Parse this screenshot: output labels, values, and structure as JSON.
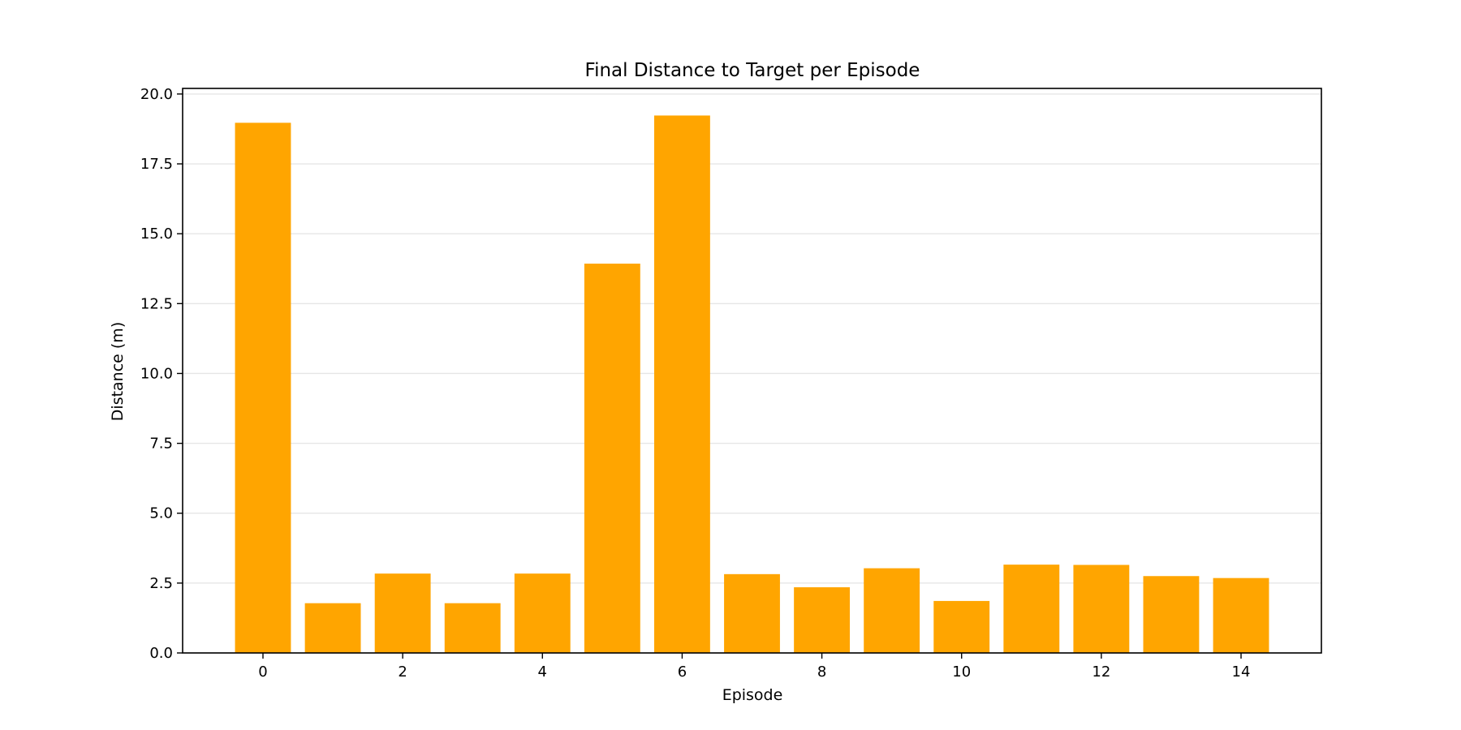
{
  "chart_data": {
    "type": "bar",
    "title": "Final Distance to Target per Episode",
    "xlabel": "Episode",
    "ylabel": "Distance (m)",
    "categories": [
      0,
      1,
      2,
      3,
      4,
      5,
      6,
      7,
      8,
      9,
      10,
      11,
      12,
      13,
      14
    ],
    "values": [
      18.97,
      1.78,
      2.84,
      1.78,
      2.84,
      13.93,
      19.23,
      2.82,
      2.35,
      3.03,
      1.86,
      3.16,
      3.15,
      2.75,
      2.68
    ],
    "xlim": [
      -1.15,
      15.15
    ],
    "ylim": [
      0,
      20.2
    ],
    "x_ticks": [
      0,
      2,
      4,
      6,
      8,
      10,
      12,
      14
    ],
    "x_tick_labels": [
      "0",
      "2",
      "4",
      "6",
      "8",
      "10",
      "12",
      "14"
    ],
    "y_ticks": [
      0,
      2.5,
      5,
      7.5,
      10,
      12.5,
      15,
      17.5,
      20
    ],
    "y_tick_labels": [
      "0.0",
      "2.5",
      "5.0",
      "7.5",
      "10.0",
      "12.5",
      "15.0",
      "17.5",
      "20.0"
    ],
    "grid": "horizontal",
    "bar_color": "#ffa500",
    "grid_color": "#e6e6e6",
    "axis_color": "#000000"
  }
}
